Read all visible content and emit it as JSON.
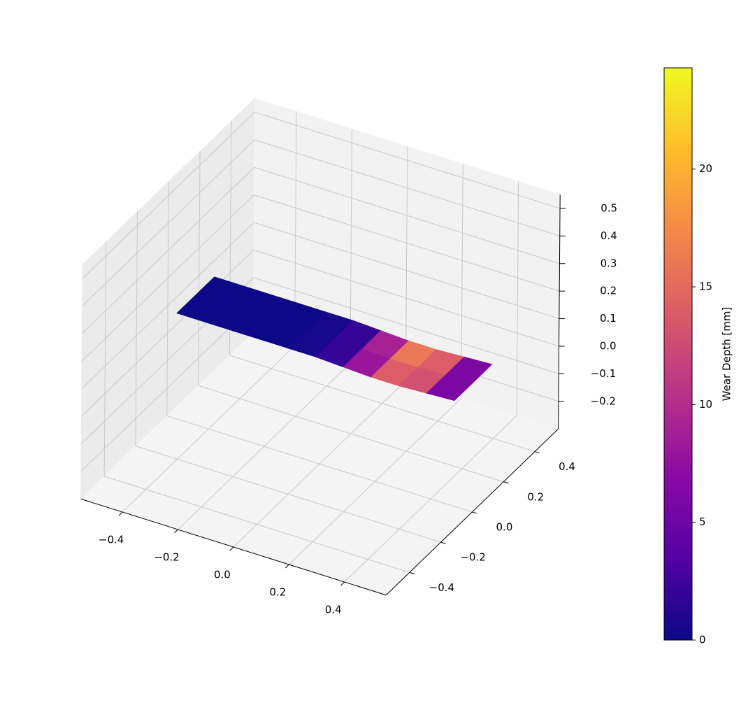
{
  "chart_data": {
    "type": "surface3d",
    "xlim": [
      -0.55,
      0.55
    ],
    "ylim": [
      -0.55,
      0.55
    ],
    "zlim": [
      -0.3,
      0.55
    ],
    "xticks": [
      {
        "value": -0.4,
        "label": "−0.4"
      },
      {
        "value": -0.2,
        "label": "−0.2"
      },
      {
        "value": 0,
        "label": "0.0"
      },
      0.2,
      0.4
    ],
    "yticks": [
      {
        "value": -0.4,
        "label": "−0.4"
      },
      {
        "value": -0.2,
        "label": "−0.2"
      },
      {
        "value": 0,
        "label": "0.0"
      },
      0.2,
      0.4
    ],
    "zticks": [
      {
        "value": -0.2,
        "label": "−0.2"
      },
      {
        "value": -0.1,
        "label": "−0.1"
      },
      {
        "value": 0,
        "label": "0.0"
      },
      0.1,
      0.2,
      0.3,
      0.4,
      0.5
    ],
    "grid": true,
    "surface": {
      "x": [
        -0.45,
        -0.35,
        -0.25,
        -0.15,
        -0.05,
        0.05,
        0.15,
        0.25,
        0.35,
        0.45,
        0.55
      ],
      "y": [
        -0.12,
        0,
        0.12
      ],
      "z": [
        [
          0.17,
          0.17,
          0.17,
          0.17,
          0.17,
          0.17,
          0.165,
          0.16,
          0.16,
          0.165,
          0.17
        ],
        [
          0.17,
          0.17,
          0.17,
          0.17,
          0.17,
          0.17,
          0.165,
          0.16,
          0.16,
          0.165,
          0.17
        ],
        [
          0.17,
          0.17,
          0.17,
          0.17,
          0.17,
          0.17,
          0.165,
          0.16,
          0.16,
          0.165,
          0.17
        ]
      ],
      "values": [
        [
          0,
          0,
          0,
          0,
          0.5,
          2,
          8,
          14,
          13,
          6
        ],
        [
          0,
          0,
          0,
          0,
          0.5,
          2,
          9,
          16,
          14,
          6
        ]
      ]
    },
    "colormap": "plasma",
    "colorbar": {
      "label": "Wear Depth [mm]",
      "lim": [
        0,
        24.3
      ],
      "ticks": [
        0,
        5,
        10,
        15,
        20
      ]
    }
  }
}
